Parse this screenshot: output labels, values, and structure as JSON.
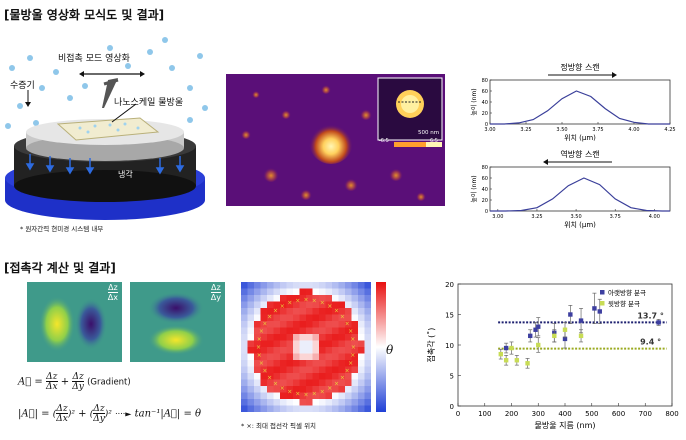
{
  "section1_title": "[물방울 영상화 모식도 및 결과]",
  "section2_title": "[접촉각 계산 및 결과]",
  "schematic": {
    "label_mode": "비접촉 모드 영상화",
    "label_vapor": "수증기",
    "label_droplet": "나노스케일 물방울",
    "label_cooling": "냉각",
    "footnote": "* 원자간력 현미경 시스템 내부"
  },
  "afm_image": {
    "inset_scale": "500 nm",
    "inset_min": "-6.5",
    "inset_max": "6.5",
    "colors": {
      "background": "#5a0f78",
      "peak": "#ffe27a"
    }
  },
  "profile_forward": {
    "title": "정방향 스캔",
    "ylabel": "높이 (nm)",
    "xlabel": "위치 (μm)",
    "chart_data": {
      "type": "line",
      "x": [
        3.0,
        3.1,
        3.2,
        3.3,
        3.4,
        3.5,
        3.6,
        3.7,
        3.8,
        3.9,
        4.0,
        4.1,
        4.2,
        4.25
      ],
      "y": [
        0,
        0,
        2,
        8,
        24,
        46,
        60,
        50,
        28,
        10,
        3,
        0,
        0,
        0
      ],
      "xlim": [
        3.0,
        4.25
      ],
      "ylim": [
        0,
        80
      ],
      "xticks": [
        "3.00",
        "3.25",
        "3.50",
        "3.75",
        "4.00",
        "4.25"
      ],
      "yticks": [
        "0",
        "20",
        "40",
        "60",
        "80"
      ]
    }
  },
  "profile_reverse": {
    "title": "역방향 스캔",
    "ylabel": "높이 (nm)",
    "xlabel": "위치 (μm)",
    "chart_data": {
      "type": "line",
      "x": [
        2.95,
        3.05,
        3.15,
        3.25,
        3.35,
        3.45,
        3.55,
        3.65,
        3.75,
        3.85,
        3.95,
        4.05,
        4.1
      ],
      "y": [
        0,
        0,
        1,
        6,
        22,
        46,
        60,
        48,
        22,
        6,
        1,
        0,
        0
      ],
      "xlim": [
        2.95,
        4.1
      ],
      "ylim": [
        0,
        80
      ],
      "xticks": [
        "3.00",
        "3.25",
        "3.50",
        "3.75",
        "4.00"
      ],
      "yticks": [
        "0",
        "20",
        "40",
        "60",
        "80"
      ]
    }
  },
  "gradient_panels": {
    "label_x_num": "Δz",
    "label_x_den": "Δx",
    "label_y_num": "Δz",
    "label_y_den": "Δy"
  },
  "formula": {
    "line1": "A⃗ = Δz/Δx + Δz/Δy  (Gradient)",
    "line1_a": "A⃗ =",
    "line1_gradient": "(Gradient)",
    "line2_lhs": "|A⃗| =",
    "line2_rhs": "tan⁻¹|A⃗| = θ",
    "arrow": "····►"
  },
  "heatmap": {
    "colorbar_label": "θ",
    "footnote": "* ×: 최대 접선각 픽셀 위치",
    "colors": {
      "low": "#1f3fd6",
      "mid": "#ffffff",
      "high": "#e81010",
      "marker": "#e8d23a"
    }
  },
  "contact_chart": {
    "chart_data": {
      "type": "scatter",
      "xlabel": "물방울 지름 (nm)",
      "ylabel": "접촉각 (˚)",
      "xlim": [
        0,
        800
      ],
      "ylim": [
        0,
        20
      ],
      "xticks": [
        0,
        100,
        200,
        300,
        400,
        500,
        600,
        700,
        800
      ],
      "yticks": [
        0,
        5,
        10,
        15,
        20
      ],
      "series": [
        {
          "name": "아랫방향 분극",
          "color": "#3d3fa0",
          "x": [
            180,
            270,
            290,
            300,
            360,
            400,
            420,
            460,
            510,
            530,
            750
          ],
          "y": [
            9.5,
            11.5,
            12.5,
            13.0,
            12.0,
            11.0,
            15.0,
            14.0,
            16.0,
            15.5,
            13.7
          ],
          "err": [
            0.8,
            1.0,
            1.2,
            1.5,
            1.5,
            1.5,
            1.5,
            2.0,
            2.5,
            2.0,
            0.5
          ]
        },
        {
          "name": "윗방향 분극",
          "color": "#c8dc55",
          "x": [
            160,
            180,
            200,
            220,
            260,
            300,
            360,
            400,
            460
          ],
          "y": [
            8.5,
            7.5,
            9.5,
            7.5,
            7.0,
            10.0,
            11.5,
            12.5,
            11.5
          ],
          "err": [
            0.8,
            0.8,
            1.0,
            0.8,
            0.8,
            1.2,
            1.0,
            1.2,
            1.0
          ]
        }
      ],
      "hlines": [
        {
          "value": 13.7,
          "label": "13.7 °",
          "color": "#1e2170"
        },
        {
          "value": 9.4,
          "label": "9.4 °",
          "color": "#9aaa20"
        }
      ],
      "legend": "top-right"
    }
  }
}
